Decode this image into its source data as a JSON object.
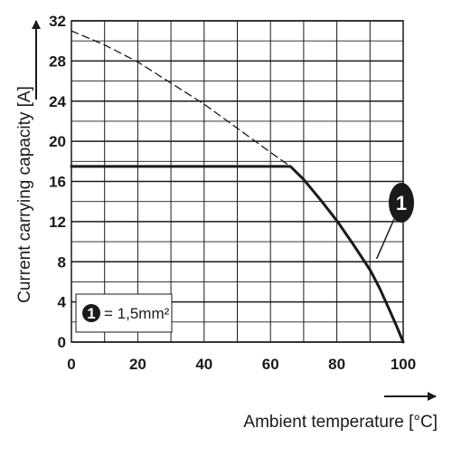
{
  "chart_data": {
    "type": "line",
    "xlabel": "Ambient temperature [°C]",
    "ylabel": "Current carrying capacity [A]",
    "xlim": [
      0,
      100
    ],
    "ylim": [
      0,
      32
    ],
    "x_ticks": [
      0,
      20,
      40,
      60,
      80,
      100
    ],
    "y_ticks": [
      0,
      4,
      8,
      12,
      16,
      20,
      24,
      28,
      32
    ],
    "x_tick_labels": [
      "0",
      "20",
      "40",
      "60",
      "80",
      "100"
    ],
    "y_tick_labels": [
      "0",
      "4",
      "8",
      "12",
      "16",
      "20",
      "24",
      "28",
      "32"
    ],
    "grid": true,
    "series": [
      {
        "name": "1,5mm²",
        "marker": "1",
        "style": "solid",
        "x": [
          0,
          66,
          70,
          75,
          80,
          85,
          90,
          93,
          96,
          98,
          100
        ],
        "y": [
          17.5,
          17.5,
          16.2,
          14.2,
          12.1,
          9.7,
          7.2,
          5.3,
          3.1,
          1.6,
          0
        ]
      },
      {
        "name": "",
        "style": "dashed",
        "x": [
          0,
          10,
          20,
          30,
          40,
          50,
          60,
          66
        ],
        "y": [
          31,
          29.6,
          27.9,
          25.8,
          23.7,
          21.3,
          18.9,
          17.5
        ]
      }
    ],
    "legend": {
      "badge": "1",
      "text": "= 1,5mm²",
      "position": "bottom-left"
    },
    "callout": {
      "badge": "1",
      "x": 92,
      "y": 8.3
    }
  }
}
